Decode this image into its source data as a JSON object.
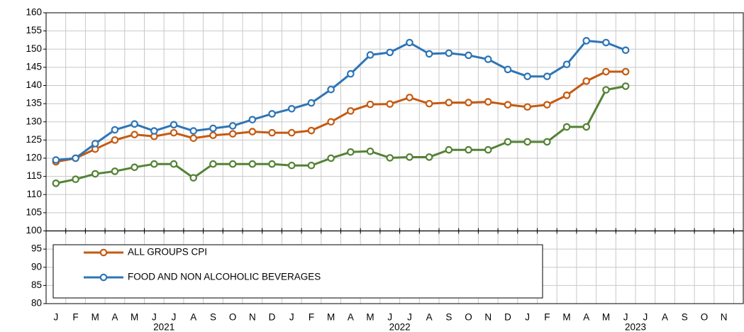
{
  "chart_data": {
    "type": "line",
    "categories": [
      "J",
      "F",
      "M",
      "A",
      "M",
      "J",
      "J",
      "A",
      "S",
      "O",
      "N",
      "D",
      "J",
      "F",
      "M",
      "A",
      "M",
      "J",
      "J",
      "A",
      "S",
      "O",
      "N",
      "D",
      "J",
      "F",
      "M",
      "A",
      "M",
      "J",
      "J",
      "A",
      "S",
      "O",
      "N"
    ],
    "year_labels": [
      "2021",
      "2022",
      "2023"
    ],
    "series": [
      {
        "name": "ALL GROUPS CPI",
        "color": "#c55a11",
        "values": [
          119,
          120,
          122.5,
          125,
          126.5,
          126,
          127,
          125.5,
          126.3,
          126.7,
          127.3,
          127,
          127,
          127.6,
          130,
          133,
          134.8,
          134.9,
          136.7,
          135,
          135.3,
          135.3,
          135.5,
          134.7,
          134.1,
          134.7,
          137.3,
          141.2,
          143.8,
          143.8,
          null,
          null,
          null,
          null,
          null
        ]
      },
      {
        "name": "FOOD AND NON ALCOHOLIC BEVERAGES",
        "color": "#2e75b6",
        "values": [
          119.5,
          120,
          124,
          127.8,
          129.4,
          127.5,
          129.2,
          127.5,
          128.2,
          128.9,
          130.6,
          132.2,
          133.6,
          135.2,
          138.9,
          143.2,
          148.4,
          149.1,
          151.8,
          148.7,
          148.9,
          148.3,
          147.2,
          144.4,
          142.5,
          142.5,
          145.8,
          152.3,
          151.8,
          149.7,
          null,
          null,
          null,
          null,
          null
        ]
      },
      {
        "color": "#548235",
        "values": [
          113.1,
          114.2,
          115.7,
          116.4,
          117.5,
          118.4,
          118.4,
          114.6,
          118.4,
          118.4,
          118.4,
          118.4,
          118,
          118,
          120,
          121.7,
          121.9,
          120.1,
          120.3,
          120.3,
          122.3,
          122.3,
          122.3,
          124.5,
          124.5,
          124.5,
          128.6,
          128.6,
          138.8,
          139.8,
          null,
          null,
          null,
          null,
          null
        ]
      }
    ],
    "ylim": [
      80,
      160
    ],
    "yticks": [
      80,
      85,
      90,
      95,
      100,
      105,
      110,
      115,
      120,
      125,
      130,
      135,
      140,
      145,
      150,
      155,
      160
    ],
    "xaxis_at": 100,
    "grid": true
  }
}
